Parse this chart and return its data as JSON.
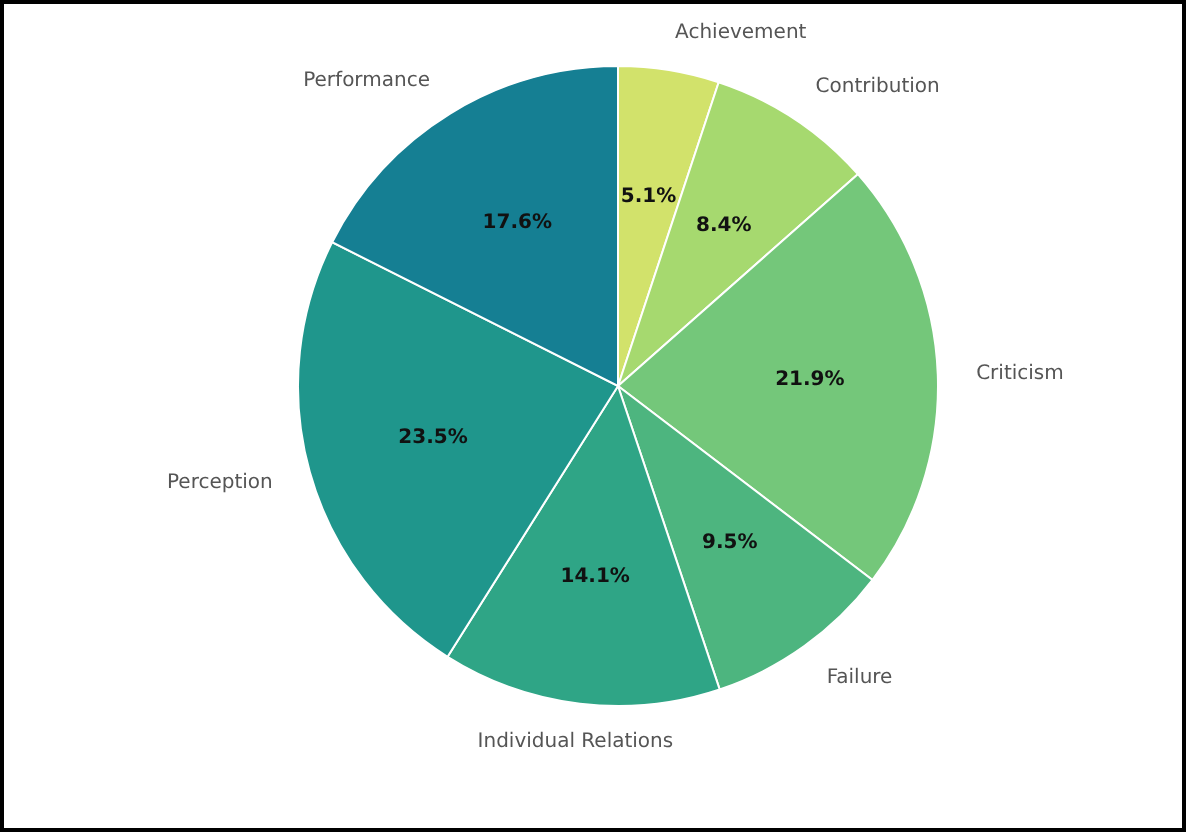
{
  "chart_data": {
    "type": "pie",
    "categories": [
      "Achievement",
      "Contribution",
      "Criticism",
      "Failure",
      "Individual Relations",
      "Perception",
      "Performance"
    ],
    "values": [
      5.1,
      8.4,
      21.9,
      9.5,
      14.1,
      23.5,
      17.6
    ],
    "colors": [
      "#d2e26b",
      "#a6d96f",
      "#74c77a",
      "#4db57f",
      "#2fa586",
      "#1f968c",
      "#157f93"
    ],
    "value_labels": [
      "5.1%",
      "8.4%",
      "21.9%",
      "9.5%",
      "14.1%",
      "23.5%",
      "17.6%"
    ]
  }
}
